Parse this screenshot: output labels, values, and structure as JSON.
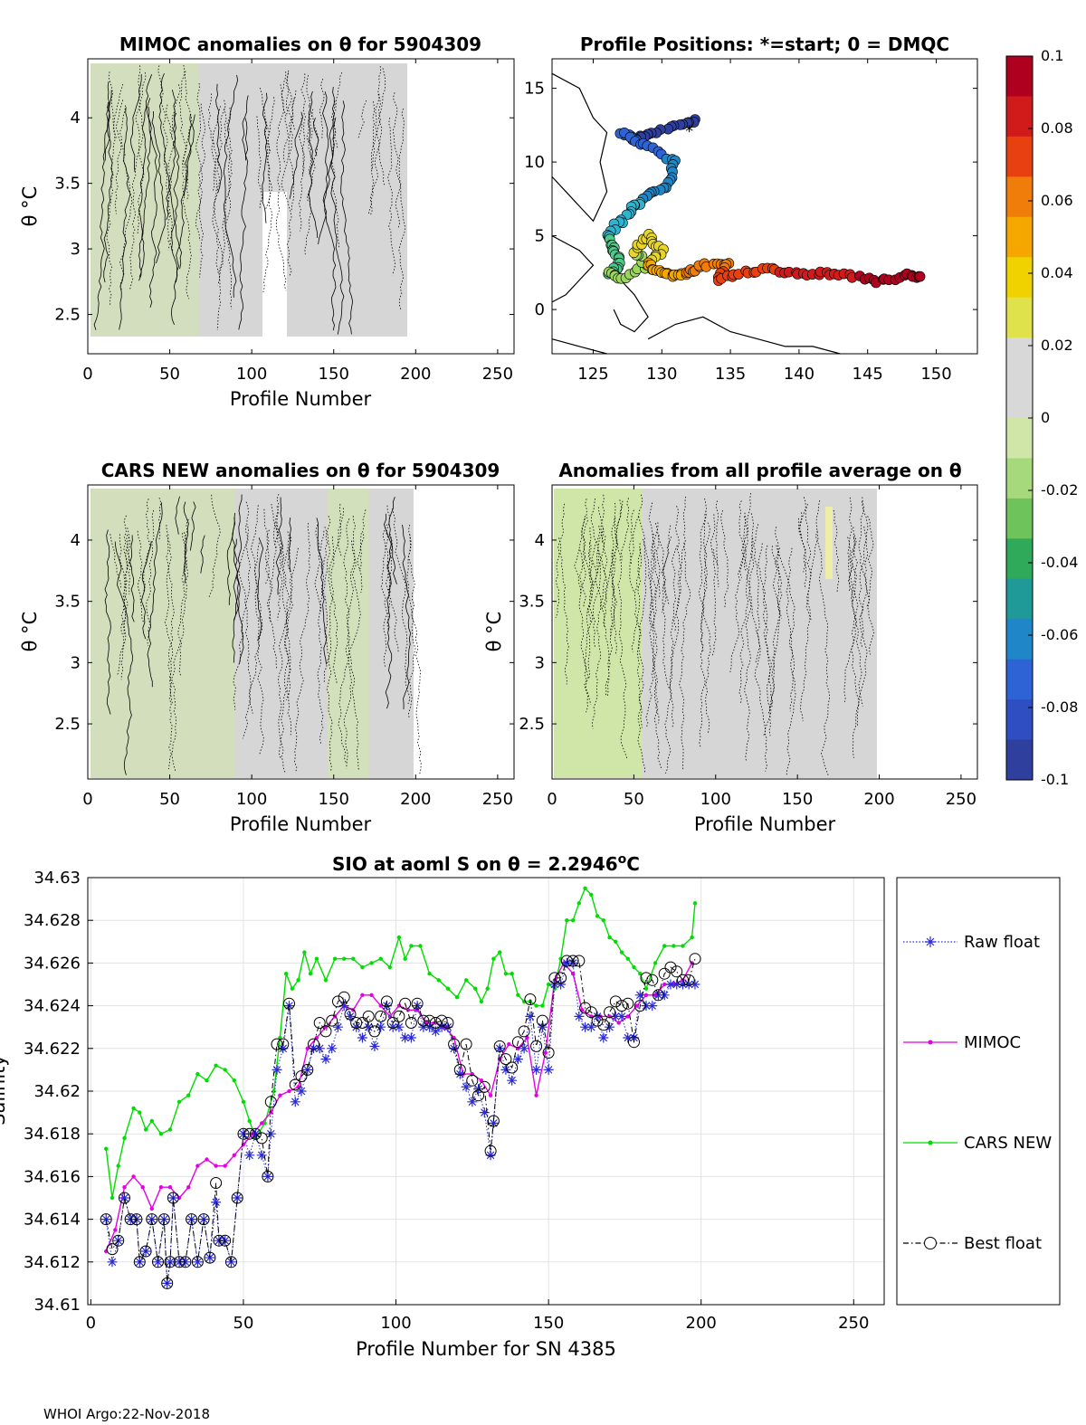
{
  "footer": "WHOI Argo:22-Nov-2018",
  "colors": {
    "raw": "#2b2bd6",
    "mimoc": "#e600e6",
    "cars": "#00dd00",
    "best": "#000000",
    "anomaly_fill": "#d6d6d6",
    "anomaly_cool": "#cfe6a8"
  },
  "colorbar": {
    "ticks": [
      "0.1",
      "0.08",
      "0.06",
      "0.04",
      "0.02",
      "0",
      "-0.02",
      "-0.04",
      "-0.06",
      "-0.08",
      "-0.1"
    ],
    "colors": [
      "#b00020",
      "#d11a1a",
      "#e8410f",
      "#f07c0a",
      "#f5a700",
      "#f0d200",
      "#dfe24a",
      "#d8d8d8",
      "#d8d8d8",
      "#cfe6a8",
      "#a6d97c",
      "#6ec35a",
      "#2faa5a",
      "#1f9a98",
      "#1f86c8",
      "#2e63d6",
      "#2f4ec2",
      "#2f3f9e"
    ]
  },
  "chart_data": [
    {
      "type": "heatmap",
      "id": "mimoc",
      "title": "MIMOC anomalies on θ  for 5904309",
      "xlabel": "Profile Number",
      "ylabel": "θ °C",
      "xlim": [
        0,
        260
      ],
      "ylim": [
        2.2,
        4.45
      ],
      "xticks": [
        "0",
        "50",
        "100",
        "150",
        "200",
        "250"
      ],
      "yticks": [
        "2.5",
        "3",
        "3.5",
        "4"
      ]
    },
    {
      "type": "scatter",
      "id": "positions",
      "title": "Profile Positions: *=start; 0 = DMQC",
      "xlabel": "",
      "ylabel": "",
      "xlim": [
        122,
        153
      ],
      "ylim": [
        -3,
        17
      ],
      "xticks": [
        "125",
        "130",
        "135",
        "140",
        "145",
        "150"
      ],
      "yticks": [
        "0",
        "5",
        "10",
        "15"
      ],
      "start_marker": "*"
    },
    {
      "type": "heatmap",
      "id": "cars",
      "title": "CARS NEW anomalies on θ for 5904309",
      "xlabel": "Profile Number",
      "ylabel": "θ °C",
      "xlim": [
        0,
        260
      ],
      "ylim": [
        2.05,
        4.45
      ],
      "xticks": [
        "0",
        "50",
        "100",
        "150",
        "200",
        "250"
      ],
      "yticks": [
        "2.5",
        "3",
        "3.5",
        "4"
      ]
    },
    {
      "type": "heatmap",
      "id": "allavg",
      "title": "Anomalies from all profile average on θ",
      "xlabel": "Profile Number",
      "ylabel": "θ °C",
      "xlim": [
        0,
        260
      ],
      "ylim": [
        2.05,
        4.45
      ],
      "xticks": [
        "0",
        "50",
        "100",
        "150",
        "200",
        "250"
      ],
      "yticks": [
        "2.5",
        "3",
        "3.5",
        "4"
      ]
    },
    {
      "type": "line",
      "id": "salinity",
      "title": "SIO at aoml S on θ = 2.2946",
      "title_sup": "o",
      "title_tail": "C",
      "xlabel": "Profile Number for SN 4385",
      "ylabel": "Salinity",
      "xlim": [
        -1,
        260
      ],
      "ylim": [
        34.61,
        34.63
      ],
      "xticks": [
        "0",
        "50",
        "100",
        "150",
        "200",
        "250"
      ],
      "yticks": [
        "34.61",
        "34.612",
        "34.614",
        "34.616",
        "34.618",
        "34.62",
        "34.622",
        "34.624",
        "34.626",
        "34.628",
        "34.63"
      ],
      "legend_position": "right (outside)",
      "series": [
        {
          "name": "Raw float",
          "style": "dotted blue with * markers",
          "x": [
            5,
            7,
            9,
            11,
            13,
            15,
            16,
            18,
            20,
            22,
            24,
            25,
            26,
            27,
            29,
            31,
            33,
            35,
            37,
            39,
            41,
            42,
            44,
            46,
            48,
            50,
            52,
            54,
            56,
            58,
            59,
            61,
            63,
            65,
            67,
            69,
            71,
            73,
            75,
            77,
            79,
            81,
            83,
            85,
            87,
            89,
            91,
            93,
            95,
            97,
            99,
            101,
            103,
            105,
            107,
            109,
            111,
            113,
            115,
            117,
            119,
            121,
            123,
            125,
            127,
            129,
            131,
            132,
            134,
            136,
            138,
            140,
            142,
            144,
            146,
            148,
            150,
            152,
            154,
            156,
            158,
            160,
            162,
            164,
            166,
            168,
            170,
            172,
            174,
            176,
            178,
            180,
            182,
            184,
            186,
            188,
            190,
            192,
            194,
            196,
            198
          ],
          "values": [
            34.614,
            34.612,
            34.613,
            34.615,
            34.614,
            34.614,
            34.612,
            34.6125,
            34.614,
            34.612,
            34.614,
            34.611,
            34.612,
            34.615,
            34.612,
            34.612,
            34.614,
            34.612,
            34.614,
            34.6122,
            34.6148,
            34.613,
            34.613,
            34.612,
            34.615,
            34.618,
            34.617,
            34.618,
            34.617,
            34.616,
            34.618,
            34.621,
            34.622,
            34.624,
            34.6195,
            34.62,
            34.621,
            34.622,
            34.622,
            34.6215,
            34.622,
            34.623,
            34.624,
            34.6235,
            34.623,
            34.6225,
            34.623,
            34.6221,
            34.623,
            34.624,
            34.623,
            34.623,
            34.6225,
            34.6225,
            34.624,
            34.623,
            34.623,
            34.6228,
            34.623,
            34.623,
            34.622,
            34.6208,
            34.6202,
            34.6195,
            34.6201,
            34.619,
            34.617,
            34.6185,
            34.622,
            34.621,
            34.6205,
            34.6215,
            34.622,
            34.6235,
            34.621,
            34.623,
            34.621,
            34.625,
            34.625,
            34.626,
            34.626,
            34.6235,
            34.623,
            34.623,
            34.6235,
            34.6225,
            34.623,
            34.6235,
            34.6235,
            34.6225,
            34.6225,
            34.6245,
            34.624,
            34.624,
            34.6245,
            34.6245,
            34.625,
            34.625,
            34.625,
            34.625,
            34.625
          ]
        },
        {
          "name": "MIMOC",
          "style": "magenta line with dot markers",
          "x": [
            5,
            8,
            11,
            14,
            17,
            20,
            23,
            26,
            29,
            32,
            35,
            38,
            41,
            44,
            47,
            50,
            53,
            56,
            59,
            62,
            65,
            68,
            71,
            74,
            77,
            80,
            83,
            86,
            89,
            92,
            95,
            98,
            101,
            104,
            107,
            110,
            113,
            116,
            119,
            122,
            125,
            128,
            131,
            134,
            137,
            140,
            143,
            146,
            149,
            152,
            155,
            158,
            161,
            164,
            167,
            170,
            173,
            176,
            179,
            182,
            185,
            188,
            191,
            194,
            197
          ],
          "values": [
            34.6125,
            34.6135,
            34.6155,
            34.616,
            34.6155,
            34.6145,
            34.6155,
            34.6155,
            34.615,
            34.6155,
            34.6165,
            34.6168,
            34.6165,
            34.6165,
            34.617,
            34.6175,
            34.618,
            34.6185,
            34.619,
            34.6198,
            34.62,
            34.6202,
            34.622,
            34.6225,
            34.623,
            34.6235,
            34.624,
            34.6238,
            34.6245,
            34.6245,
            34.624,
            34.6235,
            34.624,
            34.6238,
            34.6238,
            34.6232,
            34.6232,
            34.623,
            34.6225,
            34.6208,
            34.6208,
            34.6205,
            34.6198,
            34.6215,
            34.6222,
            34.622,
            34.6225,
            34.6198,
            34.6218,
            34.6252,
            34.626,
            34.6255,
            34.6238,
            34.6235,
            34.6235,
            34.6235,
            34.6232,
            34.6235,
            34.624,
            34.6245,
            34.6245,
            34.625,
            34.625,
            34.6252,
            34.626
          ]
        },
        {
          "name": "CARS NEW",
          "style": "green line with dot markers",
          "x": [
            5,
            7,
            9,
            11,
            14,
            16,
            18,
            20,
            23,
            26,
            29,
            32,
            35,
            38,
            41,
            44,
            47,
            50,
            52,
            54,
            57,
            60,
            62,
            64,
            66,
            68,
            70,
            72,
            74,
            77,
            80,
            83,
            86,
            89,
            92,
            95,
            98,
            101,
            103,
            105,
            108,
            111,
            114,
            117,
            120,
            123,
            126,
            128,
            130,
            132,
            134,
            136,
            138,
            140,
            142,
            144,
            146,
            148,
            150,
            152,
            154,
            156,
            158,
            160,
            162,
            164,
            166,
            168,
            170,
            172,
            174,
            176,
            178,
            180,
            182,
            185,
            188,
            191,
            194,
            197,
            198
          ],
          "values": [
            34.6173,
            34.615,
            34.6165,
            34.6178,
            34.6192,
            34.619,
            34.6182,
            34.6186,
            34.618,
            34.6182,
            34.6195,
            34.6198,
            34.6208,
            34.6205,
            34.6212,
            34.621,
            34.6205,
            34.6195,
            34.6186,
            34.6178,
            34.6185,
            34.62,
            34.6225,
            34.6255,
            34.6248,
            34.6252,
            34.6265,
            34.6255,
            34.6262,
            34.6252,
            34.6262,
            34.6262,
            34.6262,
            34.6258,
            34.626,
            34.6262,
            34.6258,
            34.6272,
            34.6262,
            34.6268,
            34.6268,
            34.6255,
            34.6252,
            34.6248,
            34.6244,
            34.6252,
            34.6248,
            34.6242,
            34.6248,
            34.6262,
            34.6265,
            34.6255,
            34.6255,
            34.6245,
            34.6242,
            34.6242,
            34.624,
            34.624,
            34.625,
            34.6248,
            34.6262,
            34.628,
            34.628,
            34.6288,
            34.6295,
            34.6292,
            34.6282,
            34.628,
            34.6272,
            34.627,
            34.6265,
            34.6262,
            34.6258,
            34.6255,
            34.6248,
            34.626,
            34.6268,
            34.6268,
            34.6268,
            34.6272,
            34.6288
          ]
        },
        {
          "name": "Best float",
          "style": "dash-dot black with o markers",
          "x": [
            5,
            7,
            9,
            11,
            13,
            15,
            16,
            18,
            20,
            22,
            24,
            25,
            26,
            27,
            29,
            31,
            33,
            35,
            37,
            39,
            41,
            42,
            44,
            46,
            48,
            50,
            52,
            54,
            56,
            58,
            59,
            61,
            63,
            65,
            67,
            69,
            71,
            73,
            75,
            77,
            79,
            81,
            83,
            85,
            87,
            89,
            91,
            93,
            95,
            97,
            99,
            101,
            103,
            105,
            107,
            109,
            111,
            113,
            115,
            117,
            119,
            121,
            123,
            125,
            127,
            129,
            131,
            132,
            134,
            136,
            138,
            140,
            142,
            144,
            146,
            148,
            150,
            152,
            154,
            156,
            158,
            160,
            162,
            164,
            166,
            168,
            170,
            172,
            174,
            176,
            178,
            180,
            182,
            184,
            186,
            188,
            190,
            192,
            194,
            196,
            198
          ],
          "values": [
            34.614,
            34.6126,
            34.613,
            34.615,
            34.614,
            34.614,
            34.612,
            34.6125,
            34.614,
            34.612,
            34.614,
            34.611,
            34.612,
            34.615,
            34.612,
            34.612,
            34.614,
            34.612,
            34.614,
            34.6122,
            34.6157,
            34.613,
            34.613,
            34.612,
            34.615,
            34.618,
            34.618,
            34.618,
            34.6178,
            34.616,
            34.6195,
            34.6222,
            34.6222,
            34.6241,
            34.6203,
            34.6207,
            34.621,
            34.6222,
            34.6232,
            34.6228,
            34.6233,
            34.6242,
            34.6244,
            34.6236,
            34.6232,
            34.6232,
            34.6235,
            34.6228,
            34.6235,
            34.6242,
            34.6232,
            34.6235,
            34.6241,
            34.6232,
            34.6241,
            34.6233,
            34.6233,
            34.6232,
            34.6233,
            34.6232,
            34.6222,
            34.621,
            34.6222,
            34.6205,
            34.6198,
            34.6202,
            34.6172,
            34.6186,
            34.6221,
            34.6215,
            34.6211,
            34.6223,
            34.6228,
            34.6243,
            34.6221,
            34.6233,
            34.6218,
            34.6253,
            34.6253,
            34.6261,
            34.6261,
            34.6261,
            34.6239,
            34.6237,
            34.6233,
            34.6231,
            34.6237,
            34.6242,
            34.624,
            34.6241,
            34.6223,
            34.624,
            34.6253,
            34.6252,
            34.6245,
            34.6255,
            34.6258,
            34.6256,
            34.6252,
            34.6252,
            34.6262
          ]
        }
      ]
    }
  ]
}
